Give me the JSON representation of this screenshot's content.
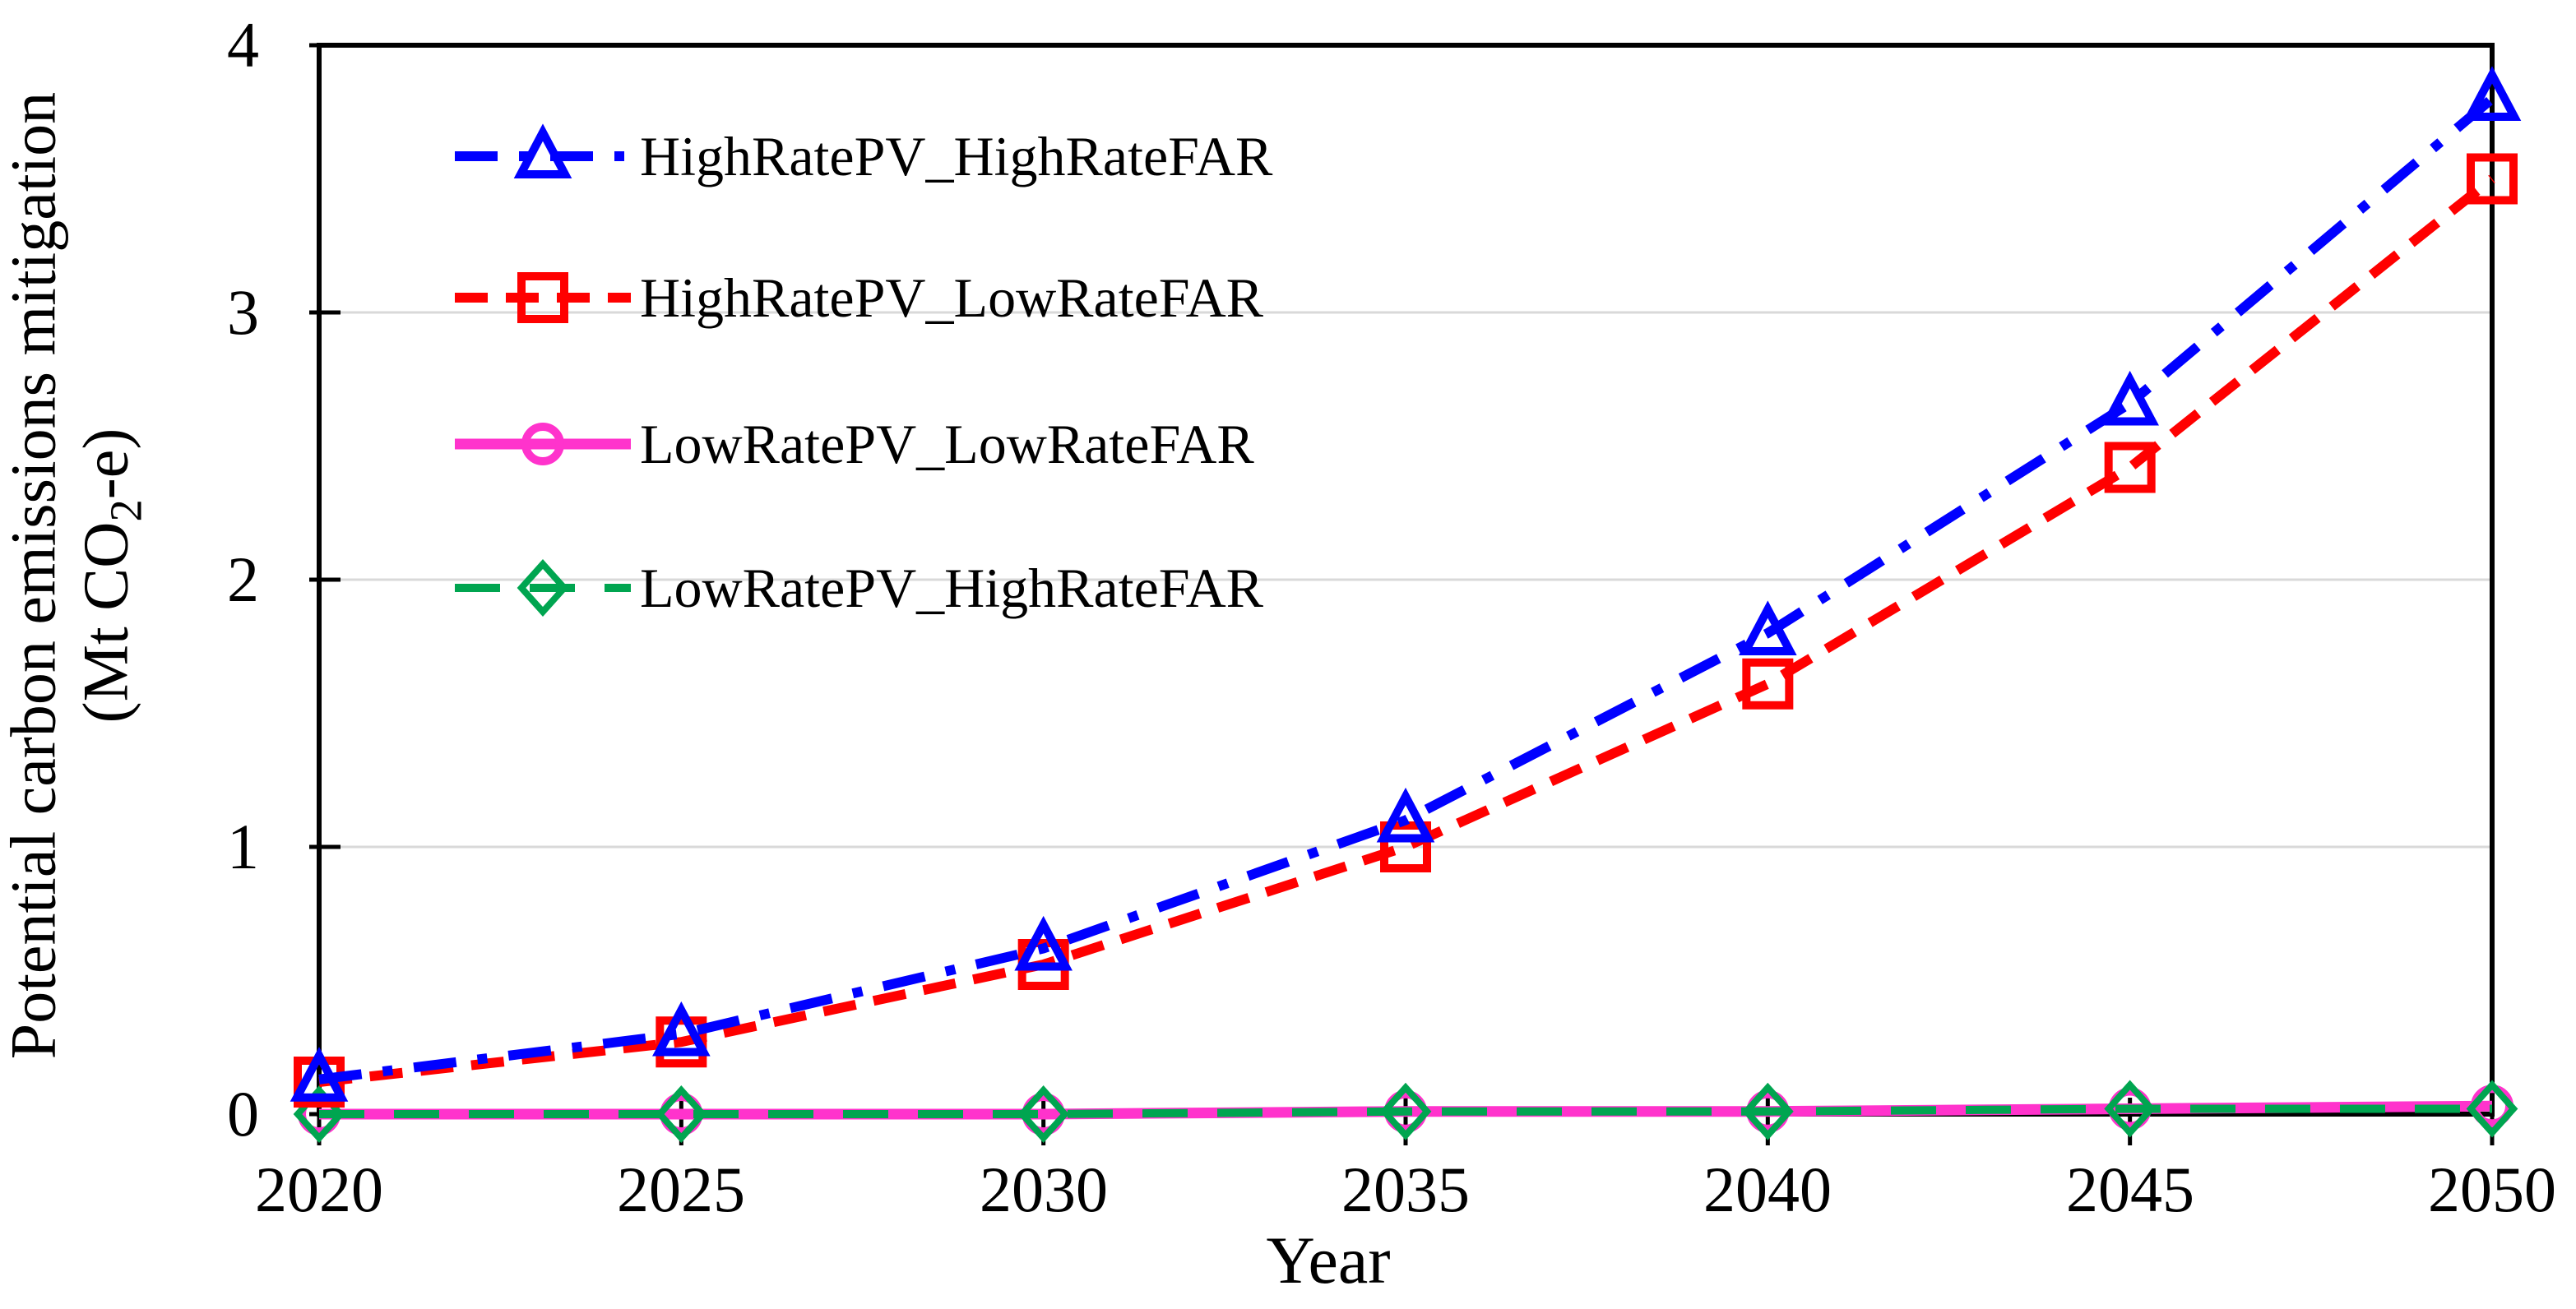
{
  "chart_data": {
    "type": "line",
    "title": "",
    "xlabel": "Year",
    "ylabel": "Potential carbon emissions mitigation",
    "ylabel_unit_prefix": "(Mt CO",
    "ylabel_unit_sub": "2",
    "ylabel_unit_suffix": "-e)",
    "x": [
      2020,
      2025,
      2030,
      2035,
      2040,
      2045,
      2050
    ],
    "x_tick_labels": [
      "2020",
      "2025",
      "2030",
      "2035",
      "2040",
      "2045",
      "2050"
    ],
    "y_tick_labels": [
      "0",
      "1",
      "2",
      "3",
      "4"
    ],
    "y_ticks": [
      0,
      1,
      2,
      3,
      4
    ],
    "xlim": [
      2020,
      2050
    ],
    "ylim": [
      0,
      4
    ],
    "grid": "horizontal gridlines at y=1,2,3",
    "legend_position": "inside top-left",
    "series": [
      {
        "name": "HighRatePV_HighRateFAR",
        "color": "#0000ff",
        "line_style": "dashdot",
        "marker": "triangle",
        "line_width": 12,
        "values": [
          0.13,
          0.3,
          0.62,
          1.1,
          1.8,
          2.66,
          3.8
        ]
      },
      {
        "name": "HighRatePV_LowRateFAR",
        "color": "#ff0000",
        "line_style": "dashed",
        "marker": "square",
        "line_width": 12,
        "values": [
          0.12,
          0.27,
          0.56,
          1.0,
          1.61,
          2.42,
          3.5
        ]
      },
      {
        "name": "LowRatePV_LowRateFAR",
        "color": "#ff33cc",
        "line_style": "solid",
        "marker": "circle",
        "line_width": 13,
        "values": [
          0.0,
          0.0,
          0.0,
          0.01,
          0.01,
          0.02,
          0.03
        ]
      },
      {
        "name": "LowRatePV_HighRateFAR",
        "color": "#00a550",
        "line_style": "long-dashed",
        "marker": "diamond",
        "line_width": 10,
        "values": [
          0.0,
          0.0,
          0.0,
          0.01,
          0.01,
          0.02,
          0.02
        ]
      }
    ],
    "colors": {
      "grid": "#d9d9d9",
      "axis": "#000000",
      "text": "#000000",
      "background": "#ffffff"
    }
  }
}
